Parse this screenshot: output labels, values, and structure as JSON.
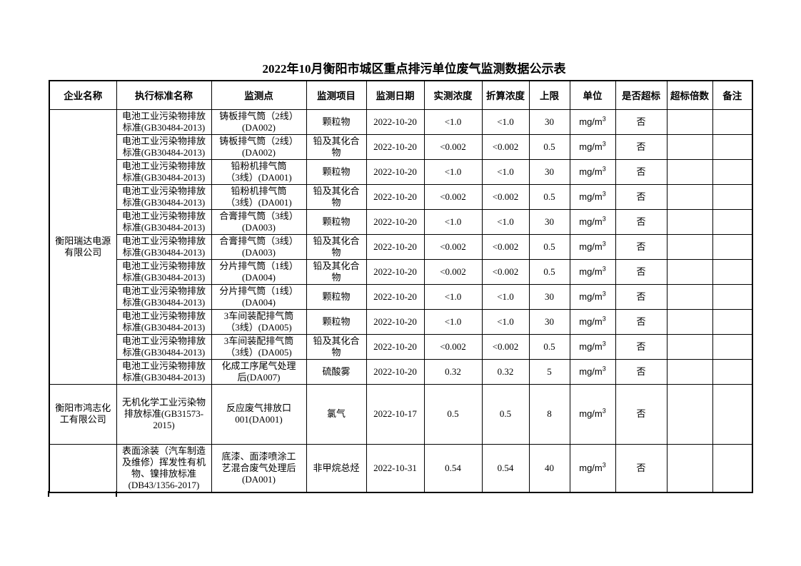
{
  "page": {
    "title": "2022年10月衡阳市城区重点排污单位废气监测数据公示表"
  },
  "table": {
    "headers": [
      "企业名称",
      "执行标准名称",
      "监测点",
      "监测项目",
      "监测日期",
      "实测浓度",
      "折算浓度",
      "上限",
      "单位",
      "是否超标",
      "超标倍数",
      "备注"
    ],
    "companies": [
      {
        "name": "衡阳瑞达电源\n有限公司",
        "rowspan": 11,
        "last": false
      },
      {
        "name": "衡阳市鸿志化\n工有限公司",
        "rowspan": 1,
        "last": false
      },
      {
        "name": "",
        "rowspan": 1,
        "last": true
      }
    ],
    "rows": [
      {
        "company": 0,
        "std": "电池工业污染物排放\n标准(GB30484-2013)",
        "point": "铸板排气筒（2线）\n(DA002)",
        "item": "颗粒物",
        "date": "2022-10-20",
        "measured": "<1.0",
        "converted": "<1.0",
        "limit": "30",
        "unit_base": "mg/m",
        "unit_sup": "3",
        "exceed": "否",
        "multiple": "",
        "remark": ""
      },
      {
        "std": "电池工业污染物排放\n标准(GB30484-2013)",
        "point": "铸板排气筒（2线）\n(DA002)",
        "item": "铅及其化合\n物",
        "date": "2022-10-20",
        "measured": "<0.002",
        "converted": "<0.002",
        "limit": "0.5",
        "unit_base": "mg/m",
        "unit_sup": "3",
        "exceed": "否",
        "multiple": "",
        "remark": ""
      },
      {
        "std": "电池工业污染物排放\n标准(GB30484-2013)",
        "point": "铅粉机排气筒\n（3线）(DA001)",
        "item": "颗粒物",
        "date": "2022-10-20",
        "measured": "<1.0",
        "converted": "<1.0",
        "limit": "30",
        "unit_base": "mg/m",
        "unit_sup": "3",
        "exceed": "否",
        "multiple": "",
        "remark": ""
      },
      {
        "std": "电池工业污染物排放\n标准(GB30484-2013)",
        "point": "铅粉机排气筒\n（3线）(DA001)",
        "item": "铅及其化合\n物",
        "date": "2022-10-20",
        "measured": "<0.002",
        "converted": "<0.002",
        "limit": "0.5",
        "unit_base": "mg/m",
        "unit_sup": "3",
        "exceed": "否",
        "multiple": "",
        "remark": ""
      },
      {
        "std": "电池工业污染物排放\n标准(GB30484-2013)",
        "point": "合膏排气筒（3线）\n(DA003)",
        "item": "颗粒物",
        "date": "2022-10-20",
        "measured": "<1.0",
        "converted": "<1.0",
        "limit": "30",
        "unit_base": "mg/m",
        "unit_sup": "3",
        "exceed": "否",
        "multiple": "",
        "remark": ""
      },
      {
        "std": "电池工业污染物排放\n标准(GB30484-2013)",
        "point": "合膏排气筒（3线）\n(DA003)",
        "item": "铅及其化合\n物",
        "date": "2022-10-20",
        "measured": "<0.002",
        "converted": "<0.002",
        "limit": "0.5",
        "unit_base": "mg/m",
        "unit_sup": "3",
        "exceed": "否",
        "multiple": "",
        "remark": ""
      },
      {
        "std": "电池工业污染物排放\n标准(GB30484-2013)",
        "point": "分片排气筒（1线）\n(DA004)",
        "item": "铅及其化合\n物",
        "date": "2022-10-20",
        "measured": "<0.002",
        "converted": "<0.002",
        "limit": "0.5",
        "unit_base": "mg/m",
        "unit_sup": "3",
        "exceed": "否",
        "multiple": "",
        "remark": ""
      },
      {
        "std": "电池工业污染物排放\n标准(GB30484-2013)",
        "point": "分片排气筒（1线）\n(DA004)",
        "item": "颗粒物",
        "date": "2022-10-20",
        "measured": "<1.0",
        "converted": "<1.0",
        "limit": "30",
        "unit_base": "mg/m",
        "unit_sup": "3",
        "exceed": "否",
        "multiple": "",
        "remark": ""
      },
      {
        "std": "电池工业污染物排放\n标准(GB30484-2013)",
        "point": "3车间装配排气筒\n（3线）(DA005)",
        "item": "颗粒物",
        "date": "2022-10-20",
        "measured": "<1.0",
        "converted": "<1.0",
        "limit": "30",
        "unit_base": "mg/m",
        "unit_sup": "3",
        "exceed": "否",
        "multiple": "",
        "remark": ""
      },
      {
        "std": "电池工业污染物排放\n标准(GB30484-2013)",
        "point": "3车间装配排气筒\n（3线）(DA005)",
        "item": "铅及其化合\n物",
        "date": "2022-10-20",
        "measured": "<0.002",
        "converted": "<0.002",
        "limit": "0.5",
        "unit_base": "mg/m",
        "unit_sup": "3",
        "exceed": "否",
        "multiple": "",
        "remark": ""
      },
      {
        "std": "电池工业污染物排放\n标准(GB30484-2013)",
        "point": "化成工序尾气处理\n后(DA007)",
        "item": "硫酸雾",
        "date": "2022-10-20",
        "measured": "0.32",
        "converted": "0.32",
        "limit": "5",
        "unit_base": "mg/m",
        "unit_sup": "3",
        "exceed": "否",
        "multiple": "",
        "remark": ""
      },
      {
        "company": 1,
        "std": "无机化学工业污染物\n排放标准(GB31573-\n2015)",
        "point": "反应废气排放口\n001(DA001)",
        "item": "氯气",
        "date": "2022-10-17",
        "measured": "0.5",
        "converted": "0.5",
        "limit": "8",
        "unit_base": "mg/m",
        "unit_sup": "3",
        "exceed": "否",
        "multiple": "",
        "remark": ""
      },
      {
        "company": 2,
        "std": "表面涂装（汽车制造\n及维修）挥发性有机\n物、镍排放标准\n(DB43/1356-2017)",
        "point": "底漆、面漆喷涂工\n艺混合废气处理后\n(DA001)",
        "item": "非甲烷总烃",
        "date": "2022-10-31",
        "measured": "0.54",
        "converted": "0.54",
        "limit": "40",
        "unit_base": "mg/m",
        "unit_sup": "3",
        "exceed": "否",
        "multiple": "",
        "remark": ""
      }
    ]
  }
}
